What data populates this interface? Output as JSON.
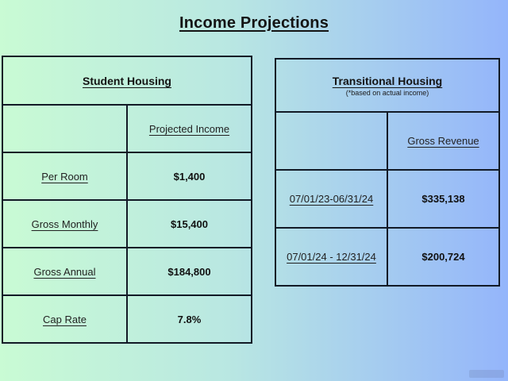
{
  "page": {
    "title": "Income Projections"
  },
  "colors": {
    "background_left": "#c9fbd4",
    "background_right": "#94b5fb",
    "table_border": "#121a26",
    "text": "#1c1c1c"
  },
  "tables": {
    "student": {
      "title": "Student Housing",
      "column_header": "Projected Income",
      "rows": [
        {
          "label": "Per Room",
          "value": "$1,400"
        },
        {
          "label": "Gross Monthly",
          "value": "$15,400"
        },
        {
          "label": "Gross Annual",
          "value": "$184,800"
        },
        {
          "label": "Cap Rate",
          "value": "7.8%"
        }
      ]
    },
    "transitional": {
      "title": "Transitional Housing",
      "subtitle": "(*based on actual income)",
      "column_header": "Gross Revenue",
      "rows": [
        {
          "label": "07/01/23-06/31/24",
          "value": "$335,138"
        },
        {
          "label": "07/01/24 - 12/31/24",
          "value": "$200,724"
        }
      ]
    }
  }
}
